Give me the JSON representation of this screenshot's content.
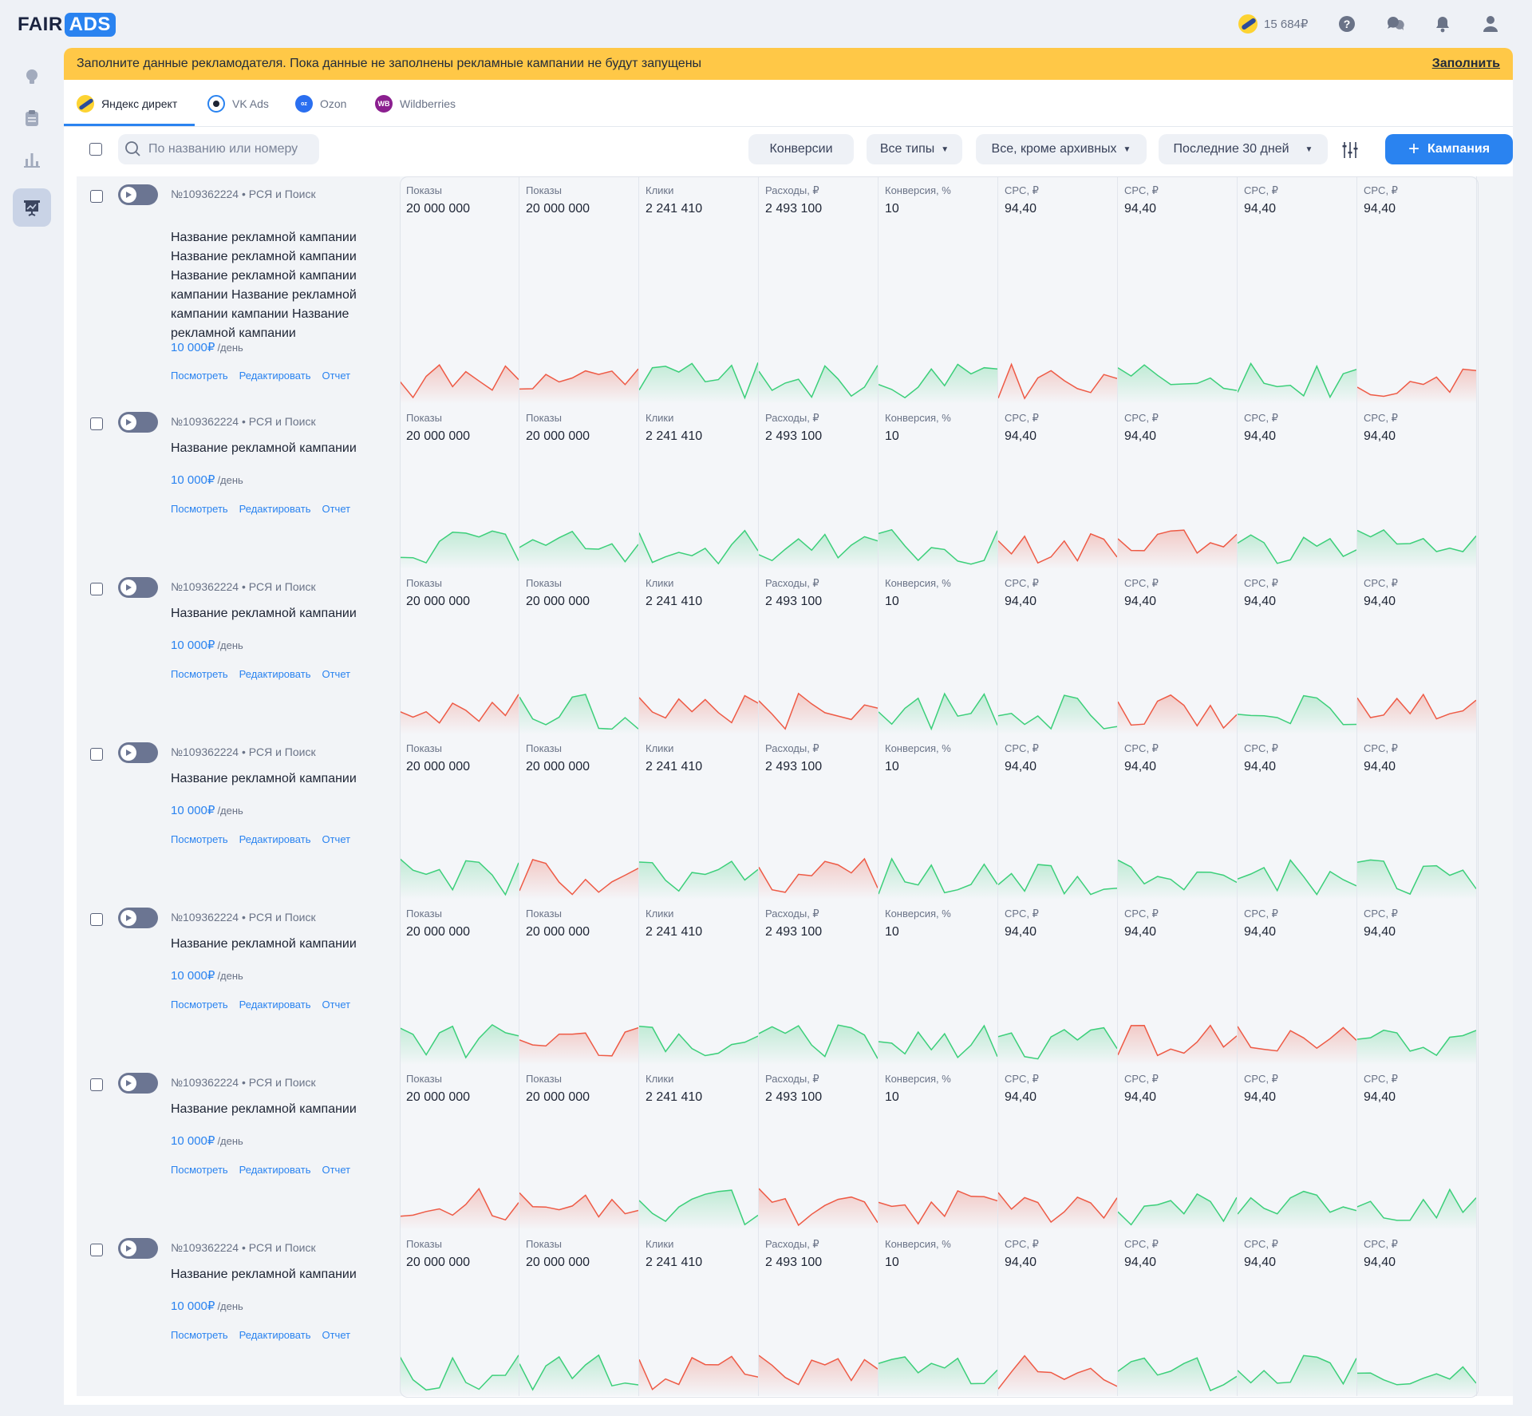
{
  "header": {
    "logo_fair": "FAIR",
    "logo_ads": "ADS",
    "balance": "15 684₽",
    "icons": [
      "help-icon",
      "support-chat-icon",
      "bell-icon",
      "user-icon"
    ]
  },
  "sidebar": {
    "items": [
      {
        "name": "lightbulb-icon",
        "active": false
      },
      {
        "name": "clipboard-icon",
        "active": false
      },
      {
        "name": "bar-chart-icon",
        "active": false
      },
      {
        "name": "presentation-chart-icon",
        "active": true
      }
    ]
  },
  "notice": {
    "text": "Заполните данные рекламодателя. Пока данные не заполнены рекламные кампании не будут запущены",
    "link": "Заполнить"
  },
  "tabs": [
    {
      "label": "Яндекс директ",
      "icon": "yandex-direct-icon",
      "active": true
    },
    {
      "label": "VK Ads",
      "icon": "vk-ads-icon",
      "active": false
    },
    {
      "label": "Ozon",
      "icon": "ozon-icon",
      "active": false
    },
    {
      "label": "Wildberries",
      "icon": "wildberries-icon",
      "icon_text": "WB",
      "active": false
    }
  ],
  "toolbar": {
    "search_placeholder": "По названию или номеру",
    "filters": [
      {
        "label": "Конверсии",
        "dropdown": false
      },
      {
        "label": "Все типы",
        "dropdown": true
      },
      {
        "label": "Все, кроме архивных",
        "dropdown": true
      },
      {
        "label": "Последние 30 дней",
        "dropdown": true
      }
    ],
    "add_button": "Кампания"
  },
  "colors": {
    "accent": "#2a83f0",
    "notice": "#ffc847",
    "up": "#3ccf7a",
    "down": "#ee5a45"
  },
  "metrics": [
    {
      "label": "Показы",
      "value": "20 000 000"
    },
    {
      "label": "Показы",
      "value": "20 000 000"
    },
    {
      "label": "Клики",
      "value": "2 241 410"
    },
    {
      "label": "Расходы, ₽",
      "value": "2 493 100"
    },
    {
      "label": "Конверсия, %",
      "value": "10"
    },
    {
      "label": "CPC, ₽",
      "value": "94,40"
    },
    {
      "label": "CPC, ₽",
      "value": "94,40"
    },
    {
      "label": "CPC, ₽",
      "value": "94,40"
    },
    {
      "label": "CPC, ₽",
      "value": "94,40"
    }
  ],
  "campaigns": [
    {
      "meta": "№109362224 • РСЯ и Поиск",
      "name": "Название рекламной кампании Название рекламной кампании Название рекламной кампании кампании Название рекламной кампании кампании Название рекламной кампании",
      "budget": "10 000₽",
      "per": "/день",
      "actions": [
        "Посмотреть",
        "Редактировать",
        "Отчет"
      ],
      "trends": [
        "down",
        "down",
        "up",
        "up",
        "up",
        "down",
        "up",
        "up",
        "down"
      ]
    },
    {
      "meta": "№109362224 • РСЯ и Поиск",
      "name": "Название рекламной кампании",
      "budget": "10 000₽",
      "per": "/день",
      "actions": [
        "Посмотреть",
        "Редактировать",
        "Отчет"
      ],
      "trends": [
        "up",
        "up",
        "up",
        "up",
        "up",
        "down",
        "down",
        "up",
        "up"
      ]
    },
    {
      "meta": "№109362224 • РСЯ и Поиск",
      "name": "Название рекламной кампании",
      "budget": "10 000₽",
      "per": "/день",
      "actions": [
        "Посмотреть",
        "Редактировать",
        "Отчет"
      ],
      "trends": [
        "down",
        "up",
        "down",
        "down",
        "up",
        "up",
        "down",
        "up",
        "down"
      ]
    },
    {
      "meta": "№109362224 • РСЯ и Поиск",
      "name": "Название рекламной кампании",
      "budget": "10 000₽",
      "per": "/день",
      "actions": [
        "Посмотреть",
        "Редактировать",
        "Отчет"
      ],
      "trends": [
        "up",
        "down",
        "up",
        "down",
        "up",
        "up",
        "up",
        "up",
        "up"
      ]
    },
    {
      "meta": "№109362224 • РСЯ и Поиск",
      "name": "Название рекламной кампании",
      "budget": "10 000₽",
      "per": "/день",
      "actions": [
        "Посмотреть",
        "Редактировать",
        "Отчет"
      ],
      "trends": [
        "up",
        "down",
        "up",
        "up",
        "up",
        "up",
        "down",
        "down",
        "up"
      ]
    },
    {
      "meta": "№109362224 • РСЯ и Поиск",
      "name": "Название рекламной кампании",
      "budget": "10 000₽",
      "per": "/день",
      "actions": [
        "Посмотреть",
        "Редактировать",
        "Отчет"
      ],
      "trends": [
        "down",
        "down",
        "up",
        "down",
        "down",
        "down",
        "up",
        "up",
        "up"
      ]
    },
    {
      "meta": "№109362224 • РСЯ и Поиск",
      "name": "Название рекламной кампании",
      "budget": "10 000₽",
      "per": "/день",
      "actions": [
        "Посмотреть",
        "Редактировать",
        "Отчет"
      ],
      "trends": [
        "up",
        "up",
        "down",
        "down",
        "up",
        "down",
        "up",
        "up",
        "up"
      ]
    }
  ]
}
